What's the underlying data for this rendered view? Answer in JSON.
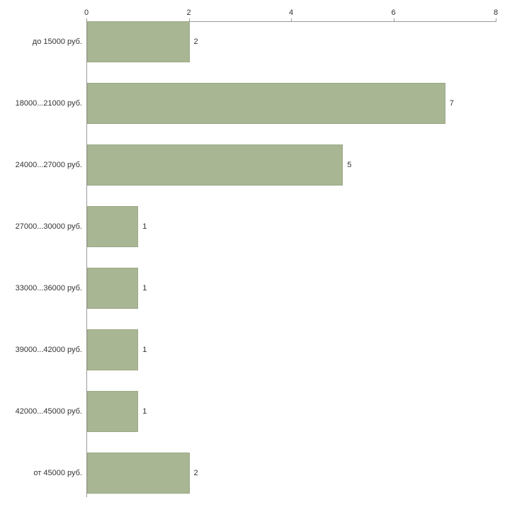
{
  "chart_data": {
    "type": "bar",
    "orientation": "horizontal",
    "title": "",
    "xlabel": "",
    "ylabel": "",
    "categories": [
      "до 15000 руб.",
      "18000...21000 руб.",
      "24000...27000 руб.",
      "27000...30000 руб.",
      "33000...36000 руб.",
      "39000...42000 руб.",
      "42000...45000 руб.",
      "от 45000 руб."
    ],
    "values": [
      2,
      7,
      5,
      1,
      1,
      1,
      1,
      2
    ],
    "xlim": [
      0,
      8
    ],
    "xticks": [
      0,
      2,
      4,
      6,
      8
    ],
    "grid": false,
    "legend": false,
    "bar_color": "#a9b694",
    "bar_border_color": "#9aa885",
    "axis_color": "#999999",
    "text_color": "#333333"
  }
}
